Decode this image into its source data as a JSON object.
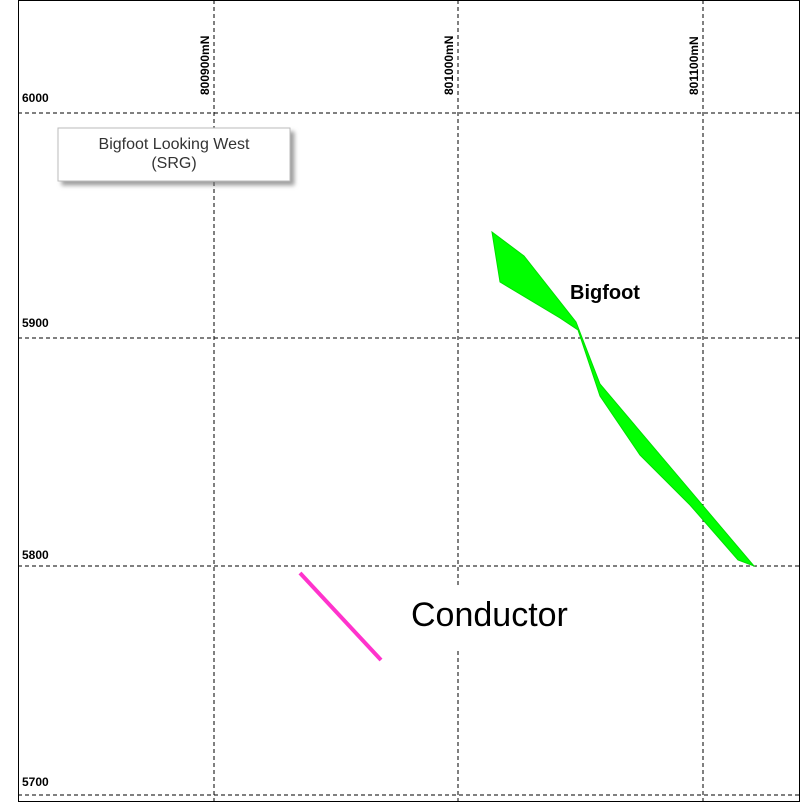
{
  "grid": {
    "northings": [
      "800900mN",
      "801000mN",
      "801100mN"
    ],
    "elevations": [
      "6000",
      "5900",
      "5800",
      "5700"
    ]
  },
  "labels": {
    "view": [
      "Bigfoot Looking West",
      "(SRG)"
    ],
    "orebody": "Bigfoot",
    "conductor": "Conductor"
  }
}
